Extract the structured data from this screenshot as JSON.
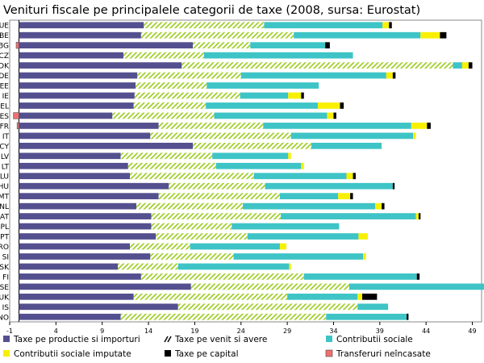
{
  "chart_data": {
    "type": "bar",
    "stacked": true,
    "orientation": "horizontal",
    "title": "Venituri fiscale pe principalele categorii de taxe (2008, sursa: Eurostat)",
    "categories": [
      "UE",
      "BE",
      "BG",
      "CZ",
      "DK",
      "DE",
      "EE",
      "IE",
      "EL",
      "ES",
      "FR",
      "IT",
      "CY",
      "LV",
      "LT",
      "LU",
      "HU",
      "MT",
      "NL",
      "AT",
      "PL",
      "PT",
      "RO",
      "SI",
      "SK",
      "FI",
      "SE",
      "UK",
      "IS",
      "NO"
    ],
    "series": [
      {
        "name": "Taxe pe productie si importuri",
        "color": "#54508f",
        "pattern": "solid",
        "values": [
          13.5,
          13.2,
          18.8,
          11.3,
          17.6,
          12.8,
          12.6,
          12.5,
          12.4,
          10.1,
          15.1,
          14.2,
          18.8,
          11.0,
          11.8,
          12.0,
          16.2,
          15.1,
          12.7,
          14.3,
          14.3,
          14.8,
          12.0,
          14.2,
          10.7,
          13.2,
          18.6,
          12.4,
          17.2,
          11.0
        ]
      },
      {
        "name": "Taxe pe venit si avere",
        "color": "#9ccc1c",
        "pattern": "hatch",
        "values": [
          13.0,
          16.5,
          6.2,
          8.7,
          29.3,
          11.2,
          7.7,
          11.4,
          7.8,
          11.0,
          11.3,
          15.2,
          12.8,
          9.9,
          9.5,
          13.4,
          10.4,
          13.1,
          11.5,
          14.0,
          8.7,
          9.9,
          6.5,
          9.0,
          6.5,
          17.6,
          17.1,
          16.6,
          19.4,
          22.2
        ]
      },
      {
        "name": "Contributii sociale",
        "color": "#3ec4c6",
        "pattern": "solid",
        "values": [
          12.8,
          13.7,
          8.1,
          16.1,
          1.0,
          15.7,
          12.1,
          5.2,
          12.1,
          12.2,
          16.0,
          13.2,
          7.6,
          8.2,
          9.2,
          10.0,
          13.8,
          6.3,
          14.3,
          14.6,
          11.6,
          12.0,
          9.7,
          14.0,
          12.0,
          12.2,
          15.2,
          7.6,
          3.3,
          8.7
        ]
      },
      {
        "name": "Contributii sociale imputate",
        "color": "#f8f000",
        "pattern": "solid",
        "values": [
          0.7,
          2.1,
          0,
          0,
          0.7,
          0.7,
          0,
          1.4,
          2.4,
          0.7,
          1.7,
          0.3,
          0,
          0.3,
          0.3,
          0.7,
          0,
          1.3,
          0.7,
          0.3,
          0,
          1.0,
          0.7,
          0.3,
          0.2,
          0,
          0.7,
          0.5,
          0,
          0
        ]
      },
      {
        "name": "Taxe pe capital",
        "color": "#000000",
        "pattern": "solid",
        "values": [
          0.3,
          0.7,
          0.5,
          0,
          0.4,
          0.3,
          0,
          0.3,
          0.4,
          0.3,
          0.4,
          0,
          0,
          0,
          0,
          0.3,
          0.2,
          0.3,
          0.3,
          0.2,
          0,
          0,
          0,
          0,
          0,
          0.3,
          0,
          1.6,
          0,
          0.2
        ]
      },
      {
        "name": "Transferuri neîncasate",
        "color": "#f07070",
        "pattern": "solid",
        "values": [
          0,
          0,
          0.3,
          0,
          0,
          0,
          0,
          0,
          0,
          0.6,
          0.2,
          0,
          0,
          0,
          0,
          0,
          0,
          0,
          0,
          0,
          0,
          0,
          0,
          0,
          0,
          0,
          0,
          0,
          0,
          0
        ]
      }
    ],
    "xlim": [
      -1,
      50
    ],
    "xticks": [
      "-1",
      "4",
      "9",
      "14",
      "19",
      "24",
      "29",
      "34",
      "39",
      "44",
      "49"
    ],
    "legend_position": "bottom"
  }
}
